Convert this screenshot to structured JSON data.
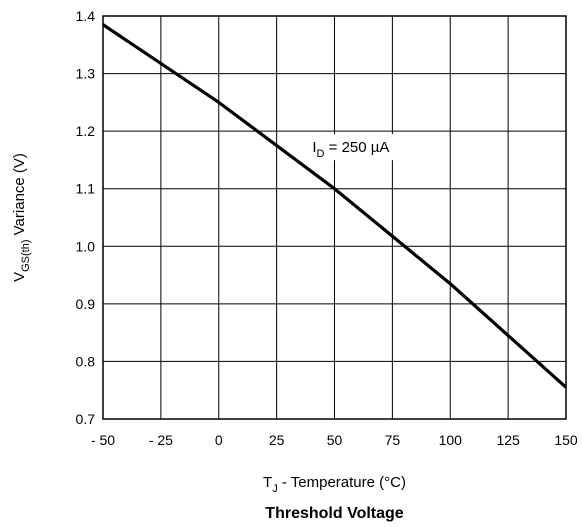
{
  "chart_data": {
    "type": "line",
    "title": "Threshold Voltage",
    "xlabel": {
      "main": "T",
      "sub": "J",
      "rest": " - Temperature (°C)"
    },
    "ylabel": {
      "main": "V",
      "sub": "GS(th)",
      "rest": "  Variance (V)"
    },
    "xlim": [
      -50,
      150
    ],
    "ylim": [
      0.7,
      1.4
    ],
    "xticks": [
      -50,
      -25,
      0,
      25,
      50,
      75,
      100,
      125,
      150
    ],
    "xtick_labels": [
      "- 50",
      "- 25",
      "0",
      "25",
      "50",
      "75",
      "100",
      "125",
      "150"
    ],
    "yticks": [
      0.7,
      0.8,
      0.9,
      1.0,
      1.1,
      1.2,
      1.3,
      1.4
    ],
    "ytick_labels": [
      "0.7",
      "0.8",
      "0.9",
      "1.0",
      "1.1",
      "1.2",
      "1.3",
      "1.4"
    ],
    "grid": true,
    "series": [
      {
        "x": [
          -50,
          0,
          50,
          100,
          150
        ],
        "y": [
          1.385,
          1.25,
          1.1,
          0.935,
          0.755
        ]
      }
    ],
    "annotation": {
      "main": "I",
      "sub": "D",
      "rest": " = 250 µA",
      "x": 75,
      "y": 1.16
    }
  }
}
